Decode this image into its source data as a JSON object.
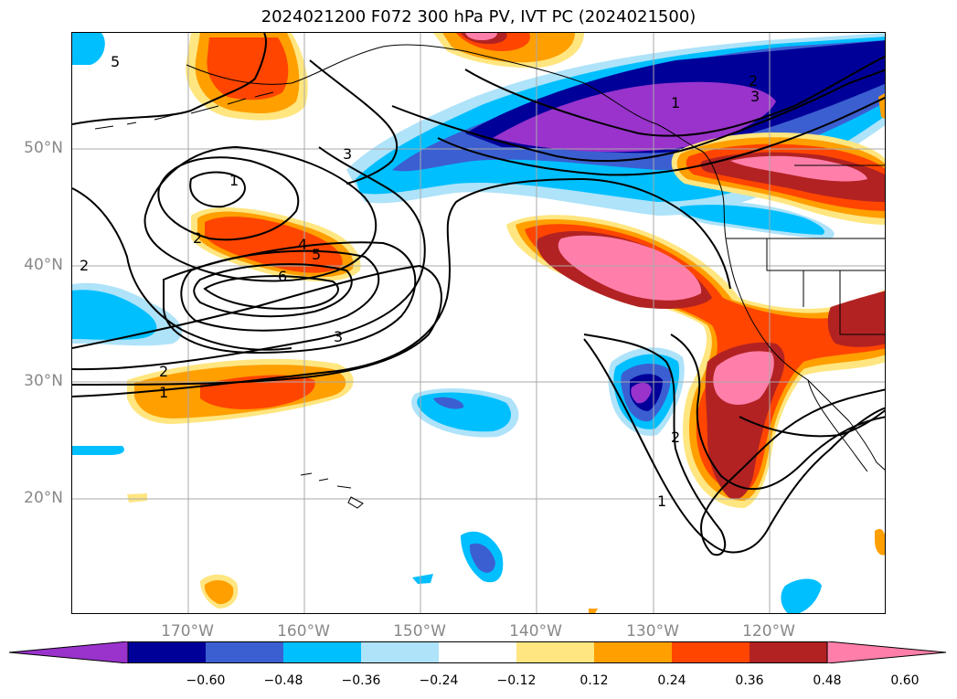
{
  "title": "2024021200 F072 300 hPa PV, IVT PC (2024021500)",
  "map": {
    "lat_labels": [
      "50°N",
      "40°N",
      "30°N",
      "20°N"
    ],
    "lon_labels": [
      "170°W",
      "160°W",
      "150°W",
      "140°W",
      "130°W",
      "120°W"
    ],
    "contour_labels": [
      "5",
      "2",
      "1",
      "3",
      "4",
      "5",
      "6",
      "3",
      "2",
      "1",
      "1",
      "2",
      "3",
      "2",
      "1",
      "2"
    ],
    "colors": {
      "neg_060": "#9933cc",
      "neg_048": "#000099",
      "neg_036": "#3b5fd1",
      "neg_024": "#00bfff",
      "neg_012": "#aee3f9",
      "pos_012": "#ffe680",
      "pos_024": "#ff9f00",
      "pos_036": "#ff4500",
      "pos_048": "#b22222",
      "pos_060": "#ff7faa"
    }
  },
  "colorbar": {
    "ticks": [
      "−0.60",
      "−0.48",
      "−0.36",
      "−0.24",
      "−0.12",
      "0.12",
      "0.24",
      "0.36",
      "0.48",
      "0.60"
    ],
    "bins": [
      "#9933cc",
      "#000099",
      "#3b5fd1",
      "#00bfff",
      "#aee3f9",
      "#ffffff",
      "#ffe680",
      "#ff9f00",
      "#ff4500",
      "#b22222",
      "#ff7faa"
    ]
  }
}
